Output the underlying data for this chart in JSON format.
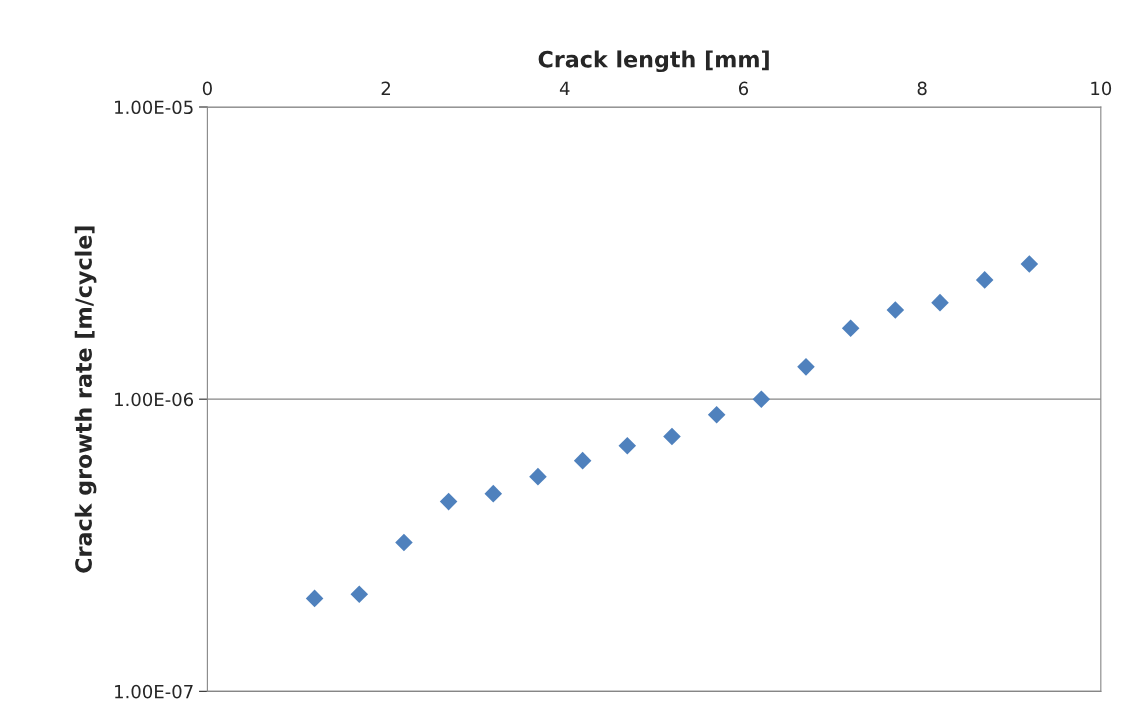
{
  "chart_data": {
    "type": "scatter",
    "xlabel": "Crack length [mm]",
    "ylabel": "Crack growth rate [m/cycle]",
    "x": [
      1.2,
      1.7,
      2.2,
      2.7,
      3.2,
      3.7,
      4.2,
      4.7,
      5.2,
      5.7,
      6.2,
      6.7,
      7.2,
      7.7,
      8.2,
      8.7,
      9.2
    ],
    "series": [
      {
        "color": "#4f81bd",
        "values": [
          2.08e-07,
          2.15e-07,
          3.23e-07,
          4.46e-07,
          4.75e-07,
          5.43e-07,
          6.16e-07,
          6.93e-07,
          7.45e-07,
          8.85e-07,
          1e-06,
          1.29e-06,
          1.75e-06,
          2.02e-06,
          2.14e-06,
          2.56e-06,
          2.9e-06
        ]
      }
    ],
    "xlim": [
      0,
      10
    ],
    "xticks": [
      0,
      2,
      4,
      6,
      8,
      10
    ],
    "ylim": [
      1e-07,
      1e-05
    ],
    "yticks": [
      {
        "value": 1e-07,
        "label": "1.00E-07"
      },
      {
        "value": 1e-06,
        "label": "1.00E-06"
      },
      {
        "value": 1e-05,
        "label": "1.00E-05"
      }
    ],
    "log": "y",
    "grid": "y",
    "marker": "diamond"
  }
}
